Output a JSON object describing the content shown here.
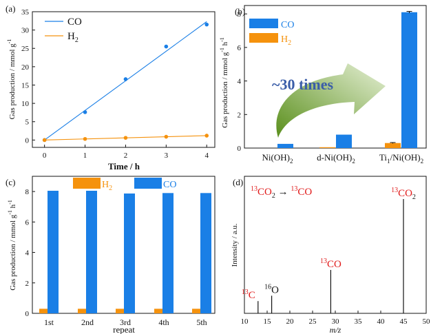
{
  "colors": {
    "co": "#1a7fe6",
    "h2": "#f5920d",
    "red": "#e01818",
    "arrow_dark": "#5a8f1c",
    "arrow_light": "#e6f0d6",
    "arrow_text": "#3a5da8"
  },
  "chart_data": [
    {
      "panel": "(a)",
      "type": "scatter",
      "xlabel": "Time / h",
      "ylabel": "Gas production / mmol g",
      "ylabel_sup": "-1",
      "xlim": [
        -0.3,
        4.2
      ],
      "ylim": [
        -2,
        35
      ],
      "xticks": [
        0,
        1,
        2,
        3,
        4
      ],
      "yticks": [
        0,
        5,
        10,
        15,
        20,
        25,
        30,
        35
      ],
      "legend_position": "top-left",
      "series": [
        {
          "name": "CO",
          "legend_main": "CO",
          "legend_sub": "",
          "color_key": "co",
          "x": [
            0,
            1,
            2,
            3,
            4
          ],
          "y": [
            0,
            7.6,
            16.6,
            25.5,
            31.5
          ],
          "fit": [
            [
              0,
              0
            ],
            [
              4,
              32.3
            ]
          ]
        },
        {
          "name": "H2",
          "legend_main": "H",
          "legend_sub": "2",
          "color_key": "h2",
          "x": [
            0,
            1,
            2,
            3,
            4
          ],
          "y": [
            0,
            0.3,
            0.6,
            0.9,
            1.2
          ],
          "fit": [
            [
              0,
              0
            ],
            [
              4,
              1.2
            ]
          ]
        }
      ]
    },
    {
      "panel": "(b)",
      "type": "bar",
      "ylabel": "Gas production / mmol g",
      "ylabel_sup1": "-1",
      "ylabel_mid": " h",
      "ylabel_sup2": "-1",
      "ylim": [
        0,
        8.5
      ],
      "yticks": [
        0,
        2,
        4,
        6,
        8
      ],
      "legend_position": "top-left",
      "categories": [
        {
          "main": "Ni(OH)",
          "sub": "2",
          "tail": ""
        },
        {
          "main": "d-Ni(OH)",
          "sub": "2",
          "tail": ""
        },
        {
          "main": "Ti",
          "sub": "1",
          "tail": "/Ni(OH)",
          "sub2": "2"
        }
      ],
      "series": [
        {
          "name": "H2",
          "legend_main": "H",
          "legend_sub": "2",
          "color_key": "h2",
          "values": [
            0.0,
            0.05,
            0.3
          ],
          "errors": [
            0,
            0,
            0.03
          ]
        },
        {
          "name": "CO",
          "legend_main": "CO",
          "legend_sub": "",
          "color_key": "co",
          "values": [
            0.25,
            0.8,
            8.1
          ],
          "errors": [
            0,
            0,
            0.05
          ]
        }
      ],
      "annotation": "~30 times"
    },
    {
      "panel": "(c)",
      "type": "bar",
      "xlabel": "repeat",
      "ylabel": "Gas production / mmol g",
      "ylabel_sup1": "-1",
      "ylabel_mid": " h",
      "ylabel_sup2": "-1",
      "ylim": [
        0,
        9
      ],
      "yticks": [
        0,
        2,
        4,
        6,
        8
      ],
      "legend_position": "top",
      "categories": [
        "1st",
        "2nd",
        "3rd",
        "4th",
        "5th"
      ],
      "series": [
        {
          "name": "H2",
          "legend_main": "H",
          "legend_sub": "2",
          "color_key": "h2",
          "values": [
            0.3,
            0.3,
            0.3,
            0.3,
            0.3
          ]
        },
        {
          "name": "CO",
          "legend_main": "CO",
          "legend_sub": "",
          "color_key": "co",
          "values": [
            8.05,
            8.05,
            7.87,
            7.9,
            7.9
          ]
        }
      ]
    },
    {
      "panel": "(d)",
      "type": "bar",
      "xlabel": "m/z",
      "ylabel": "Intensity / a.u.",
      "xlim": [
        10,
        50
      ],
      "xticks": [
        10,
        15,
        20,
        25,
        30,
        35,
        40,
        45,
        50
      ],
      "reaction": {
        "a_sup": "13",
        "a_main": "CO",
        "a_sub": "2",
        "arrow": " → ",
        "b_sup": "13",
        "b_main": "CO"
      },
      "peaks": [
        {
          "x": 13,
          "h": 0.05,
          "label_sup": "13",
          "label_main": "C",
          "label_red": true
        },
        {
          "x": 16,
          "h": 0.1,
          "label_sup": "16",
          "label_main": "O",
          "label_red": false
        },
        {
          "x": 29,
          "h": 0.34,
          "label_sup": "13",
          "label_main": "CO",
          "label_sub": "",
          "label_red": true
        },
        {
          "x": 45,
          "h": 1.0,
          "label_sup": "13",
          "label_main": "CO",
          "label_sub": "2",
          "label_red": true
        }
      ]
    }
  ]
}
